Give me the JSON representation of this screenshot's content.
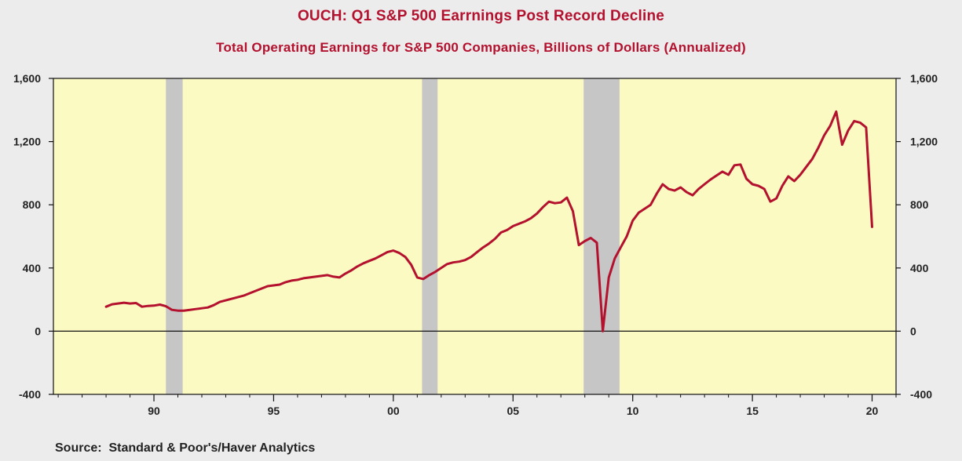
{
  "chart_data": {
    "type": "line",
    "title": "OUCH: Q1 S&P 500 Earrnings Post Record Decline",
    "subtitle": "Total Operating Earnings for S&P 500 Companies, Billions of Dollars (Annualized)",
    "source": "Source:  Standard & Poor's/Haver Analytics",
    "xlabel": "",
    "ylabel": "",
    "x_range": [
      1985.8,
      2021.0
    ],
    "ylim": [
      -400,
      1600
    ],
    "y_ticks": [
      -400,
      0,
      400,
      800,
      1200,
      1600
    ],
    "y_tick_labels": [
      "-400",
      "0",
      "400",
      "800",
      "1,200",
      "1,600"
    ],
    "x_ticks": [
      {
        "year": 1990,
        "label": "90"
      },
      {
        "year": 1995,
        "label": "95"
      },
      {
        "year": 2000,
        "label": "00"
      },
      {
        "year": 2005,
        "label": "05"
      },
      {
        "year": 2010,
        "label": "10"
      },
      {
        "year": 2015,
        "label": "15"
      },
      {
        "year": 2020,
        "label": "20"
      }
    ],
    "recessions": [
      [
        1990.5,
        1991.2
      ],
      [
        2001.2,
        2001.85
      ],
      [
        2007.95,
        2009.45
      ]
    ],
    "zero_line": true,
    "grid": false,
    "colors": {
      "series": "#b3112e",
      "plot_background": "#fcfac3",
      "recession": "#c6c6c6",
      "page_background": "#ececec"
    },
    "series": [
      {
        "name": "",
        "x": [
          1988.0,
          1988.25,
          1988.5,
          1988.75,
          1989.0,
          1989.25,
          1989.5,
          1989.75,
          1990.0,
          1990.25,
          1990.5,
          1990.75,
          1991.0,
          1991.25,
          1991.5,
          1991.75,
          1992.0,
          1992.25,
          1992.5,
          1992.75,
          1993.0,
          1993.25,
          1993.5,
          1993.75,
          1994.0,
          1994.25,
          1994.5,
          1994.75,
          1995.0,
          1995.25,
          1995.5,
          1995.75,
          1996.0,
          1996.25,
          1996.5,
          1996.75,
          1997.0,
          1997.25,
          1997.5,
          1997.75,
          1998.0,
          1998.25,
          1998.5,
          1998.75,
          1999.0,
          1999.25,
          1999.5,
          1999.75,
          2000.0,
          2000.25,
          2000.5,
          2000.75,
          2001.0,
          2001.25,
          2001.5,
          2001.75,
          2002.0,
          2002.25,
          2002.5,
          2002.75,
          2003.0,
          2003.25,
          2003.5,
          2003.75,
          2004.0,
          2004.25,
          2004.5,
          2004.75,
          2005.0,
          2005.25,
          2005.5,
          2005.75,
          2006.0,
          2006.25,
          2006.5,
          2006.75,
          2007.0,
          2007.25,
          2007.5,
          2007.75,
          2008.0,
          2008.25,
          2008.5,
          2008.75,
          2009.0,
          2009.25,
          2009.5,
          2009.75,
          2010.0,
          2010.25,
          2010.5,
          2010.75,
          2011.0,
          2011.25,
          2011.5,
          2011.75,
          2012.0,
          2012.25,
          2012.5,
          2012.75,
          2013.0,
          2013.25,
          2013.5,
          2013.75,
          2014.0,
          2014.25,
          2014.5,
          2014.75,
          2015.0,
          2015.25,
          2015.5,
          2015.75,
          2016.0,
          2016.25,
          2016.5,
          2016.75,
          2017.0,
          2017.25,
          2017.5,
          2017.75,
          2018.0,
          2018.25,
          2018.5,
          2018.75,
          2019.0,
          2019.25,
          2019.5,
          2019.75,
          2020.0
        ],
        "y": [
          155,
          170,
          175,
          180,
          175,
          178,
          155,
          160,
          162,
          168,
          158,
          135,
          130,
          130,
          135,
          140,
          145,
          150,
          165,
          185,
          195,
          205,
          215,
          225,
          240,
          255,
          270,
          285,
          290,
          295,
          310,
          320,
          325,
          335,
          340,
          345,
          350,
          355,
          345,
          340,
          365,
          385,
          410,
          430,
          445,
          460,
          480,
          500,
          510,
          495,
          470,
          420,
          340,
          330,
          355,
          375,
          400,
          425,
          435,
          440,
          450,
          470,
          500,
          530,
          555,
          585,
          625,
          640,
          665,
          680,
          695,
          715,
          745,
          785,
          820,
          810,
          815,
          845,
          760,
          545,
          570,
          590,
          560,
          0,
          340,
          460,
          530,
          600,
          700,
          750,
          775,
          800,
          870,
          930,
          900,
          890,
          910,
          880,
          860,
          900,
          930,
          960,
          985,
          1010,
          990,
          1050,
          1055,
          965,
          930,
          920,
          900,
          820,
          840,
          920,
          980,
          950,
          990,
          1040,
          1090,
          1160,
          1240,
          1300,
          1390,
          1180,
          1270,
          1330,
          1320,
          1290,
          660
        ]
      }
    ]
  }
}
